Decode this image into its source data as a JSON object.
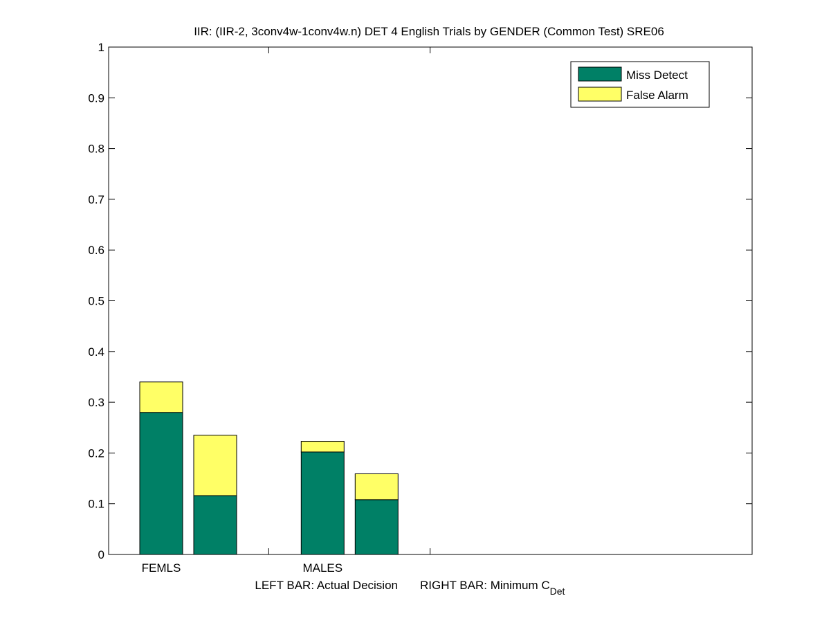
{
  "chart_data": {
    "type": "bar",
    "stacked": true,
    "title": "IIR: (IIR-2, 3conv4w-1conv4w.n) DET 4 English Trials by GENDER (Common Test) SRE06",
    "categories": [
      "FEMLS",
      "MALES"
    ],
    "xlabel": {
      "left": "LEFT BAR: Actual Decision",
      "right": "RIGHT BAR: Minimum C",
      "right_subscript": "Det"
    },
    "ylim": [
      0,
      1
    ],
    "yticks": [
      "0",
      "0.1",
      "0.2",
      "0.3",
      "0.4",
      "0.5",
      "0.6",
      "0.7",
      "0.8",
      "0.9",
      "1"
    ],
    "legend_position": "top-right",
    "series": [
      {
        "name": "Miss Detect",
        "color": "#008066",
        "values": {
          "actual": [
            0.28,
            0.202
          ],
          "minimum": [
            0.116,
            0.108
          ]
        }
      },
      {
        "name": "False Alarm",
        "color": "#ffff66",
        "values": {
          "actual": [
            0.06,
            0.021
          ],
          "minimum": [
            0.119,
            0.051
          ]
        }
      }
    ]
  }
}
